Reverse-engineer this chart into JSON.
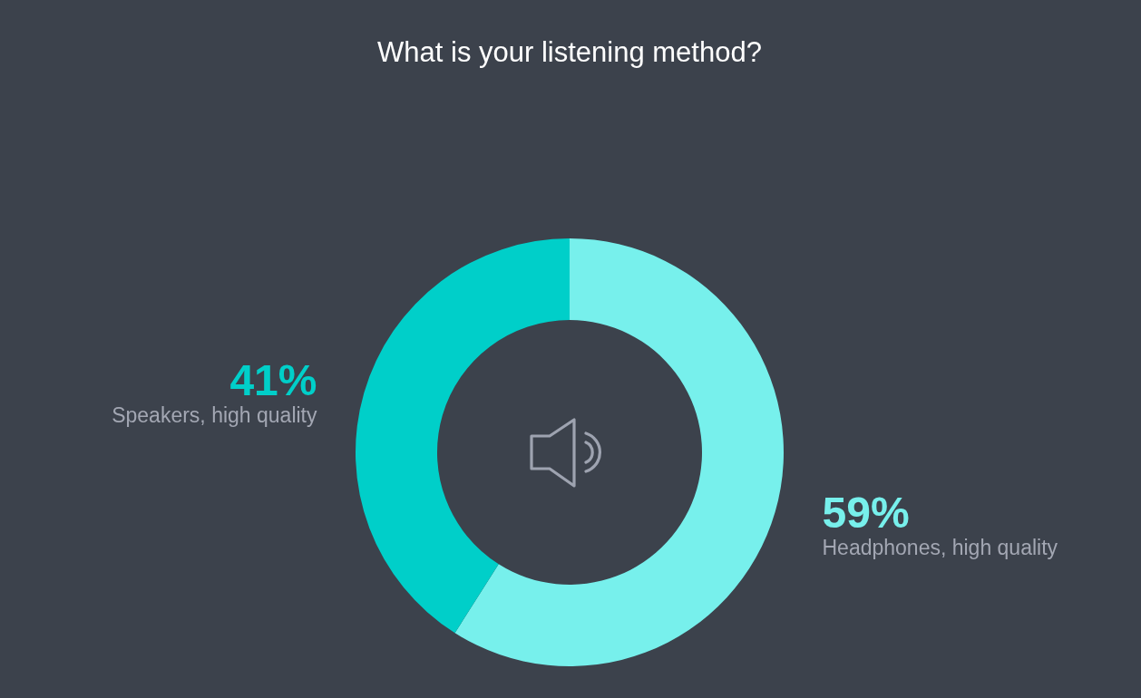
{
  "chart_data": {
    "type": "donut",
    "title": "What is your listening method?",
    "categories": [
      "Headphones, high quality",
      "Speakers, high quality"
    ],
    "values": [
      59,
      41
    ],
    "colors": [
      "#77f0ec",
      "#00cfc9"
    ],
    "value_labels": [
      "59%",
      "41%"
    ]
  }
}
